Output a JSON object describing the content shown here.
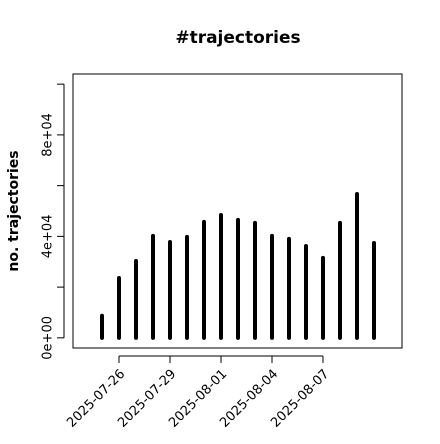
{
  "chart_data": {
    "type": "bar",
    "title": "#trajectories",
    "ylabel": "no. trajectories",
    "categories": [
      null,
      "2025-07-26",
      null,
      null,
      "2025-07-29",
      null,
      null,
      "2025-08-01",
      null,
      null,
      "2025-08-04",
      null,
      null,
      "2025-08-07",
      null,
      null,
      null
    ],
    "values": [
      8700,
      23600,
      30300,
      40200,
      37800,
      39800,
      45700,
      48400,
      46500,
      45300,
      40200,
      39000,
      36200,
      31500,
      45300,
      56700,
      37400
    ],
    "color": "#000000",
    "ylim": [
      -4000,
      104000
    ],
    "yticks": [
      {
        "value": 0,
        "label": "0e+00"
      },
      {
        "value": 20000,
        "label": null
      },
      {
        "value": 40000,
        "label": "4e+04"
      },
      {
        "value": 60000,
        "label": null
      },
      {
        "value": 80000,
        "label": "8e+04"
      },
      {
        "value": 100000,
        "label": null
      }
    ]
  }
}
